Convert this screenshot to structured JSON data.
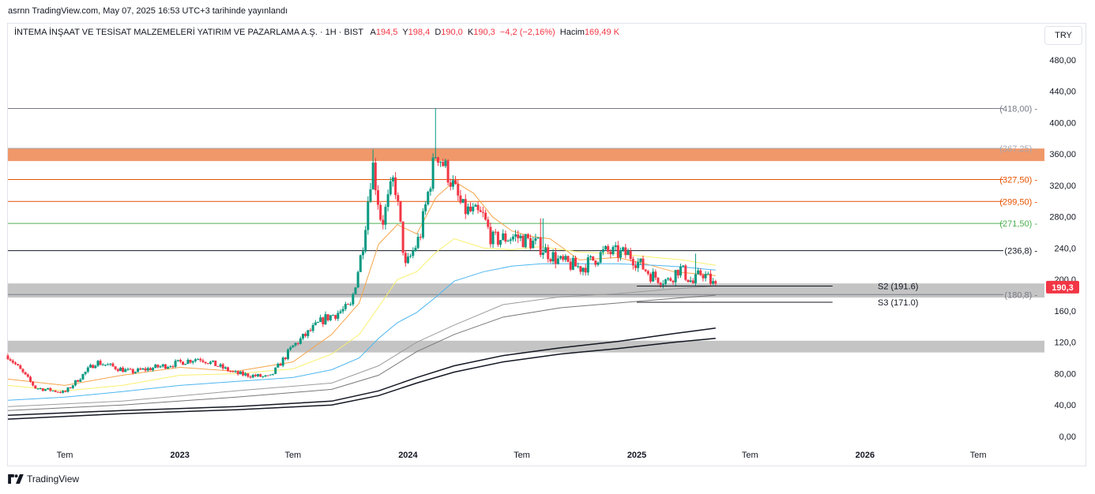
{
  "header": {
    "published": "asrnn TradingView.com, May 07, 2025 16:53 UTC+3 tarihinde yayınlandı"
  },
  "legend": {
    "symbol": "İNTEMA İNŞAAT VE TESİSAT MALZEMELERİ YATIRIM VE PAZARLAMA A.Ş. · 1H · BIST",
    "open_label": "A",
    "open": "194,5",
    "high_label": "Y",
    "high": "198,4",
    "low_label": "D",
    "low": "190,0",
    "close_label": "K",
    "close": "190,3",
    "change": "−4,2 (−2,16%)",
    "volume_label": "Hacim",
    "volume": "169,49 K"
  },
  "currency_button": "TRY",
  "footer": {
    "brand": "TradingView"
  },
  "colors": {
    "up": "#089981",
    "down": "#f23645",
    "orange_zone": "#f0986a",
    "gray_zone": "#c4c4c4",
    "ema_orange": "#f7a449",
    "ema_yellow": "#f8f06e",
    "ema_blue": "#4db6f0"
  },
  "chart_data": {
    "type": "candlestick",
    "ylim": [
      0,
      510
    ],
    "yticks": [
      "0,00",
      "40,00",
      "80,00",
      "120,0",
      "160,0",
      "200,0",
      "240,0",
      "280,00",
      "320,00",
      "360,00",
      "400,00",
      "440,00",
      "480,00"
    ],
    "ytick_values": [
      0,
      40,
      80,
      120,
      160,
      200,
      240,
      280,
      320,
      360,
      400,
      440,
      480
    ],
    "x_start": "2022-04-01",
    "x_end": "2026-10-15",
    "xticks": [
      {
        "label": "Tem",
        "date": "2022-07-01",
        "bold": false
      },
      {
        "label": "2023",
        "date": "2023-01-01",
        "bold": true
      },
      {
        "label": "Tem",
        "date": "2023-07-01",
        "bold": false
      },
      {
        "label": "2024",
        "date": "2024-01-01",
        "bold": true
      },
      {
        "label": "Tem",
        "date": "2024-07-01",
        "bold": false
      },
      {
        "label": "2025",
        "date": "2025-01-01",
        "bold": true
      },
      {
        "label": "Tem",
        "date": "2025-07-01",
        "bold": false
      },
      {
        "label": "2026",
        "date": "2026-01-01",
        "bold": true
      },
      {
        "label": "Tem",
        "date": "2026-07-01",
        "bold": false
      }
    ],
    "last_price": {
      "label": "190,3",
      "value": 190.3
    },
    "horizontal_levels": [
      {
        "label": "(418,00)",
        "value": 418,
        "color": "#787b86"
      },
      {
        "label": "(367,25)",
        "value": 367.25,
        "color": "#a3a6af"
      },
      {
        "label": "(327,50)",
        "value": 327.5,
        "color": "#e65100"
      },
      {
        "label": "(299,50)",
        "value": 299.5,
        "color": "#e65100"
      },
      {
        "label": "(271,50)",
        "value": 271.5,
        "color": "#4caf50"
      },
      {
        "label": "(236,8)",
        "value": 236.8,
        "color": "#131722"
      },
      {
        "label": "(180,8)",
        "value": 180.8,
        "color": "#787b86"
      }
    ],
    "zones": [
      {
        "low": 351,
        "high": 367,
        "color": "#f0986a"
      },
      {
        "low": 177,
        "high": 195,
        "color": "#c4c4c4"
      },
      {
        "low": 107,
        "high": 122,
        "color": "#c4c4c4"
      }
    ],
    "pivot_lines": [
      {
        "label": "S2 (191.6)",
        "value": 191.6,
        "start": "2025-01-01",
        "end": "2025-11-10"
      },
      {
        "label": "S3 (171.0)",
        "value": 171.0,
        "start": "2025-01-01",
        "end": "2025-11-10"
      }
    ],
    "anchors": [
      {
        "date": "2022-04-01",
        "close": 103
      },
      {
        "date": "2022-05-15",
        "close": 62
      },
      {
        "date": "2022-07-01",
        "close": 56
      },
      {
        "date": "2022-08-20",
        "close": 95
      },
      {
        "date": "2022-10-15",
        "close": 82
      },
      {
        "date": "2022-12-20",
        "close": 92
      },
      {
        "date": "2023-02-01",
        "close": 100
      },
      {
        "date": "2023-04-01",
        "close": 80
      },
      {
        "date": "2023-05-25",
        "close": 75
      },
      {
        "date": "2023-07-01",
        "close": 115
      },
      {
        "date": "2023-08-20",
        "close": 150
      },
      {
        "date": "2023-10-01",
        "close": 165
      },
      {
        "date": "2023-10-20",
        "close": 240
      },
      {
        "date": "2023-11-05",
        "close": 350
      },
      {
        "date": "2023-11-20",
        "close": 270
      },
      {
        "date": "2023-12-10",
        "close": 330
      },
      {
        "date": "2023-12-28",
        "close": 215
      },
      {
        "date": "2024-01-20",
        "close": 255
      },
      {
        "date": "2024-02-15",
        "close": 365
      },
      {
        "date": "2024-03-05",
        "close": 335
      },
      {
        "date": "2024-03-28",
        "close": 290
      },
      {
        "date": "2024-04-30",
        "close": 280
      },
      {
        "date": "2024-05-15",
        "close": 250
      },
      {
        "date": "2024-06-20",
        "close": 255
      },
      {
        "date": "2024-07-25",
        "close": 245
      },
      {
        "date": "2024-09-01",
        "close": 222
      },
      {
        "date": "2024-10-05",
        "close": 215
      },
      {
        "date": "2024-11-10",
        "close": 235
      },
      {
        "date": "2024-12-20",
        "close": 232
      },
      {
        "date": "2025-01-25",
        "close": 205
      },
      {
        "date": "2025-02-20",
        "close": 198
      },
      {
        "date": "2025-03-10",
        "close": 215
      },
      {
        "date": "2025-04-01",
        "close": 195
      },
      {
        "date": "2025-04-15",
        "close": 210
      },
      {
        "date": "2025-05-07",
        "close": 190.3
      }
    ],
    "spikes": [
      {
        "date": "2024-02-15",
        "high": 418
      },
      {
        "date": "2023-11-06",
        "high": 366
      },
      {
        "date": "2023-11-10",
        "high": 355
      },
      {
        "date": "2024-08-02",
        "high": 278
      },
      {
        "date": "2025-04-05",
        "high": 233
      }
    ],
    "moving_averages": [
      {
        "color": "#f7a449",
        "width": 1,
        "points": [
          [
            "2022-04-01",
            73
          ],
          [
            "2022-07-01",
            65
          ],
          [
            "2022-10-01",
            78
          ],
          [
            "2023-01-01",
            88
          ],
          [
            "2023-04-01",
            83
          ],
          [
            "2023-07-01",
            95
          ],
          [
            "2023-09-01",
            130
          ],
          [
            "2023-10-15",
            170
          ],
          [
            "2023-11-15",
            245
          ],
          [
            "2023-12-15",
            270
          ],
          [
            "2024-01-15",
            258
          ],
          [
            "2024-02-15",
            305
          ],
          [
            "2024-03-15",
            325
          ],
          [
            "2024-04-15",
            310
          ],
          [
            "2024-05-15",
            280
          ],
          [
            "2024-06-15",
            262
          ],
          [
            "2024-07-15",
            255
          ],
          [
            "2024-08-15",
            252
          ],
          [
            "2024-10-01",
            225
          ],
          [
            "2024-12-01",
            228
          ],
          [
            "2025-01-15",
            220
          ],
          [
            "2025-03-01",
            210
          ],
          [
            "2025-05-07",
            205
          ]
        ]
      },
      {
        "color": "#f8f06e",
        "width": 1,
        "points": [
          [
            "2022-04-01",
            65
          ],
          [
            "2022-07-01",
            58
          ],
          [
            "2022-10-01",
            65
          ],
          [
            "2023-01-01",
            78
          ],
          [
            "2023-04-01",
            80
          ],
          [
            "2023-07-01",
            86
          ],
          [
            "2023-09-01",
            105
          ],
          [
            "2023-10-15",
            130
          ],
          [
            "2023-11-15",
            165
          ],
          [
            "2023-12-15",
            200
          ],
          [
            "2024-01-15",
            210
          ],
          [
            "2024-02-15",
            235
          ],
          [
            "2024-03-15",
            252
          ],
          [
            "2024-05-01",
            240
          ],
          [
            "2024-06-15",
            238
          ],
          [
            "2024-08-01",
            242
          ],
          [
            "2024-10-01",
            235
          ],
          [
            "2024-12-01",
            233
          ],
          [
            "2025-02-01",
            228
          ],
          [
            "2025-03-15",
            225
          ],
          [
            "2025-05-07",
            218
          ]
        ]
      },
      {
        "color": "#4db6f0",
        "width": 1,
        "points": [
          [
            "2022-04-01",
            46
          ],
          [
            "2022-07-01",
            50
          ],
          [
            "2022-10-01",
            57
          ],
          [
            "2023-01-01",
            65
          ],
          [
            "2023-04-01",
            70
          ],
          [
            "2023-07-01",
            75
          ],
          [
            "2023-09-01",
            85
          ],
          [
            "2023-10-15",
            100
          ],
          [
            "2023-11-15",
            125
          ],
          [
            "2023-12-15",
            145
          ],
          [
            "2024-01-15",
            158
          ],
          [
            "2024-02-15",
            178
          ],
          [
            "2024-03-15",
            198
          ],
          [
            "2024-05-01",
            210
          ],
          [
            "2024-06-15",
            217
          ],
          [
            "2024-08-01",
            220
          ],
          [
            "2024-10-01",
            220
          ],
          [
            "2024-12-01",
            220
          ],
          [
            "2025-02-01",
            218
          ],
          [
            "2025-03-15",
            216
          ],
          [
            "2025-05-07",
            212
          ]
        ]
      },
      {
        "color": "#9c9c9c",
        "width": 1,
        "points": [
          [
            "2022-04-01",
            38
          ],
          [
            "2022-10-01",
            45
          ],
          [
            "2023-04-01",
            58
          ],
          [
            "2023-09-01",
            68
          ],
          [
            "2023-11-15",
            90
          ],
          [
            "2024-01-15",
            120
          ],
          [
            "2024-03-15",
            142
          ],
          [
            "2024-06-01",
            168
          ],
          [
            "2024-09-01",
            178
          ],
          [
            "2024-12-01",
            182
          ],
          [
            "2025-03-01",
            188
          ],
          [
            "2025-05-07",
            192
          ]
        ]
      },
      {
        "color": "#787878",
        "width": 1,
        "points": [
          [
            "2022-04-01",
            33
          ],
          [
            "2022-10-01",
            40
          ],
          [
            "2023-04-01",
            50
          ],
          [
            "2023-09-01",
            60
          ],
          [
            "2023-11-15",
            78
          ],
          [
            "2024-01-15",
            108
          ],
          [
            "2024-03-15",
            130
          ],
          [
            "2024-06-01",
            152
          ],
          [
            "2024-09-01",
            164
          ],
          [
            "2024-12-01",
            170
          ],
          [
            "2025-03-01",
            176
          ],
          [
            "2025-05-07",
            180
          ]
        ]
      },
      {
        "color": "#131722",
        "width": 1.5,
        "points": [
          [
            "2022-04-01",
            27
          ],
          [
            "2022-10-01",
            33
          ],
          [
            "2023-04-01",
            38
          ],
          [
            "2023-09-01",
            45
          ],
          [
            "2023-11-15",
            58
          ],
          [
            "2024-01-15",
            75
          ],
          [
            "2024-03-15",
            90
          ],
          [
            "2024-06-01",
            103
          ],
          [
            "2024-09-01",
            113
          ],
          [
            "2024-12-01",
            121
          ],
          [
            "2025-03-01",
            131
          ],
          [
            "2025-05-07",
            138
          ]
        ]
      },
      {
        "color": "#131722",
        "width": 1.5,
        "points": [
          [
            "2022-04-01",
            22
          ],
          [
            "2022-10-01",
            29
          ],
          [
            "2023-04-01",
            34
          ],
          [
            "2023-09-01",
            40
          ],
          [
            "2023-11-15",
            52
          ],
          [
            "2024-01-15",
            68
          ],
          [
            "2024-03-15",
            82
          ],
          [
            "2024-06-01",
            95
          ],
          [
            "2024-09-01",
            105
          ],
          [
            "2024-12-01",
            112
          ],
          [
            "2025-03-01",
            120
          ],
          [
            "2025-05-07",
            125
          ]
        ]
      }
    ]
  }
}
